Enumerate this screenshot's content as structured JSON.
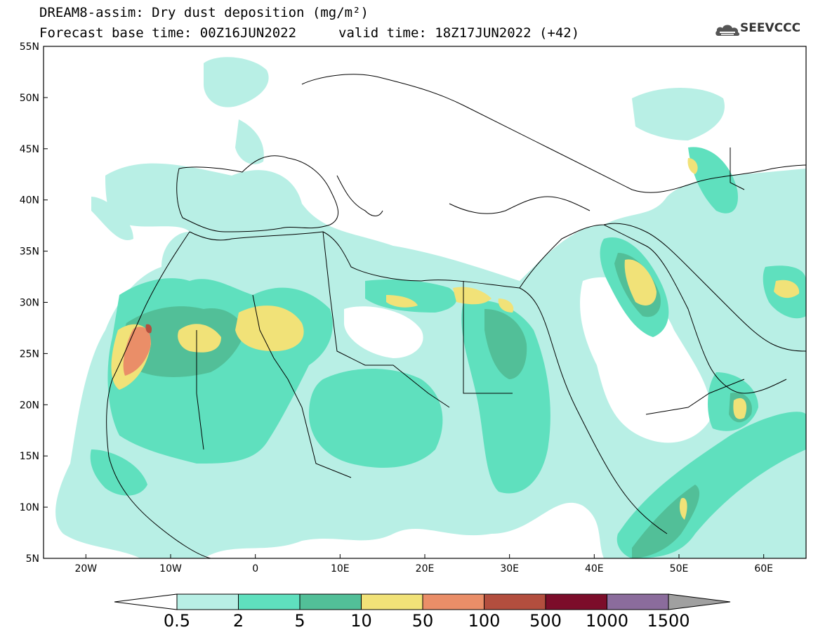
{
  "title": {
    "line1": "DREAM8-assim: Dry dust deposition (mg/m²)",
    "line2": "Forecast base time: 00Z16JUN2022",
    "valid": "valid time: 18Z17JUN2022 (+42)"
  },
  "logo": {
    "text": "SEEVCCC",
    "icon": "cloud-icon"
  },
  "map": {
    "lat_range": [
      5,
      55
    ],
    "lon_range": [
      -25,
      65
    ],
    "lat_ticks": [
      "55N",
      "50N",
      "45N",
      "40N",
      "35N",
      "30N",
      "25N",
      "20N",
      "15N",
      "10N",
      "5N"
    ],
    "lon_ticks": [
      "20W",
      "10W",
      "0",
      "10E",
      "20E",
      "30E",
      "40E",
      "50E",
      "60E"
    ]
  },
  "colorbar": {
    "labels": [
      "0.5",
      "2",
      "5",
      "10",
      "50",
      "100",
      "500",
      "1000",
      "1500"
    ],
    "colors": [
      "#b8efe5",
      "#5fe0be",
      "#52bf98",
      "#f1e278",
      "#ea8e68",
      "#b34e3e",
      "#7c0d2a",
      "#8b6c9c",
      "#a0a0a0"
    ],
    "under_color": "#ffffff",
    "over_color": "#a0a0a0"
  }
}
